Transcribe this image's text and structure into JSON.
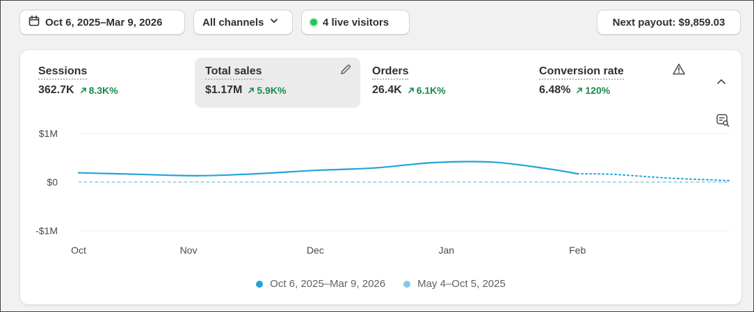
{
  "toolbar": {
    "date_range": "Oct 6, 2025–Mar 9, 2026",
    "channels": "All channels",
    "live_visitors": "4 live visitors",
    "payout": "Next payout: $9,859.03"
  },
  "metrics": [
    {
      "label": "Sessions",
      "value": "362.7K",
      "change": "8.3K%",
      "selected": false
    },
    {
      "label": "Total sales",
      "value": "$1.17M",
      "change": "5.9K%",
      "selected": true
    },
    {
      "label": "Orders",
      "value": "26.4K",
      "change": "6.1K%",
      "selected": false
    },
    {
      "label": "Conversion rate",
      "value": "6.48%",
      "change": "120%",
      "selected": false
    }
  ],
  "icons": {
    "date": "calendar-icon",
    "channels": "chevron-down-icon",
    "edit": "pencil-icon",
    "warning": "warning-triangle-icon",
    "collapse": "chevron-up-icon",
    "explore": "search-report-icon"
  },
  "colors": {
    "current_series": "#22a3d8",
    "previous_series": "#7fcbe6",
    "positive_change": "#178a4a",
    "live_dot": "#22c55e"
  },
  "chart_data": {
    "type": "line",
    "y_ticks": [
      "$1M",
      "$0",
      "-$1M"
    ],
    "ylim": [
      -1000000,
      1000000
    ],
    "x_ticks": [
      "Oct",
      "Nov",
      "Dec",
      "Jan",
      "Feb"
    ],
    "grid": true,
    "legend_position": "bottom-center",
    "series": [
      {
        "name": "Oct 6, 2025–Mar 9, 2026",
        "style": "solid-then-dotted",
        "x": [
          "2025-10-06",
          "2025-10-20",
          "2025-11-03",
          "2025-11-17",
          "2025-12-01",
          "2025-12-15",
          "2025-12-29",
          "2026-01-12",
          "2026-01-26",
          "2026-02-01",
          "2026-02-09",
          "2026-02-23",
          "2026-03-09"
        ],
        "values": [
          190000,
          160000,
          130000,
          170000,
          240000,
          290000,
          400000,
          410000,
          260000,
          170000,
          160000,
          80000,
          30000
        ],
        "dotted_from": "2026-02-01"
      },
      {
        "name": "May 4–Oct 5, 2025",
        "style": "dashed",
        "x": [
          "2025-10-06",
          "2026-03-09"
        ],
        "values": [
          0,
          0
        ]
      }
    ]
  }
}
